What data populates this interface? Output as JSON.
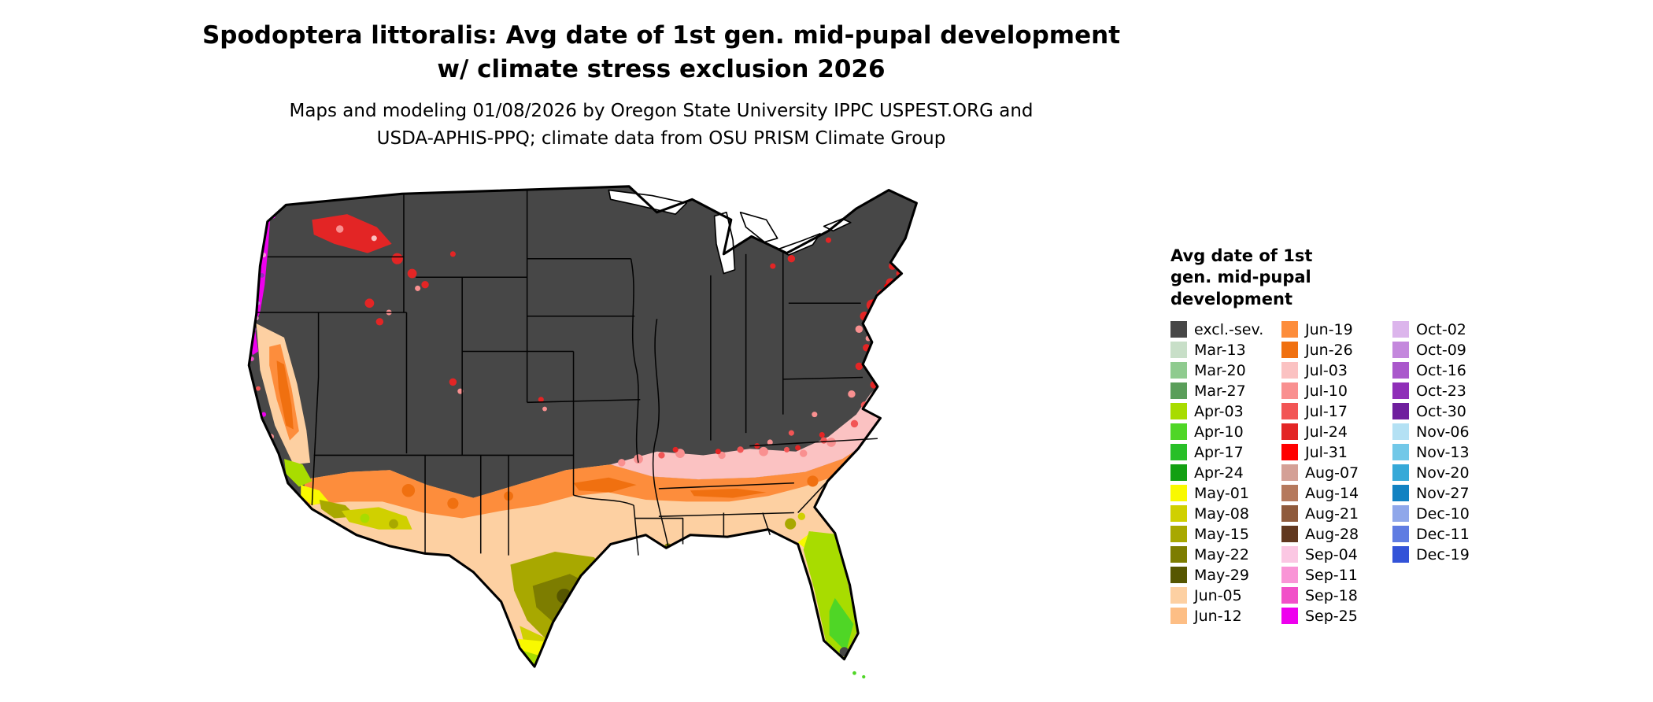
{
  "title": {
    "line1": "Spodoptera littoralis: Avg date of 1st gen. mid-pupal development",
    "line2": "w/ climate stress exclusion 2026"
  },
  "subtitle": {
    "line1": "Maps and modeling 01/08/2026 by Oregon State University IPPC USPEST.ORG and",
    "line2": "USDA-APHIS-PPQ; climate data from OSU PRISM Climate Group"
  },
  "legend": {
    "title": "Avg date of 1st gen. mid-pupal development",
    "columns": [
      [
        "excl.-sev.",
        "Mar-13",
        "Mar-20",
        "Mar-27",
        "Apr-03",
        "Apr-10",
        "Apr-17",
        "Apr-24",
        "May-01",
        "May-08",
        "May-15",
        "May-22",
        "May-29",
        "Jun-05",
        "Jun-12"
      ],
      [
        "Jun-19",
        "Jun-26",
        "Jul-03",
        "Jul-10",
        "Jul-17",
        "Jul-24",
        "Jul-31",
        "Aug-07",
        "Aug-14",
        "Aug-21",
        "Aug-28",
        "Sep-04",
        "Sep-11",
        "Sep-18",
        "Sep-25"
      ],
      [
        "Oct-02",
        "Oct-09",
        "Oct-16",
        "Oct-23",
        "Oct-30",
        "Nov-06",
        "Nov-13",
        "Nov-20",
        "Nov-27",
        "Dec-10",
        "Dec-11",
        "Dec-19"
      ]
    ]
  },
  "colors": {
    "excl.-sev.": "#474747",
    "Mar-13": "#c8dfc8",
    "Mar-20": "#8fcb8f",
    "Mar-27": "#5a9e5a",
    "Apr-03": "#a8dc00",
    "Apr-10": "#4fd626",
    "Apr-17": "#28bf28",
    "Apr-24": "#12a012",
    "May-01": "#f9f900",
    "May-08": "#d0d000",
    "May-15": "#a8a800",
    "May-22": "#7d7d00",
    "May-29": "#565600",
    "Jun-05": "#fdd0a2",
    "Jun-12": "#fdbe85",
    "Jun-19": "#fd8d3c",
    "Jun-26": "#f07010",
    "Jul-03": "#fbc2c2",
    "Jul-10": "#f99090",
    "Jul-17": "#f25555",
    "Jul-24": "#e32525",
    "Jul-31": "#ff0000",
    "Aug-07": "#d4a096",
    "Aug-14": "#b5795d",
    "Aug-21": "#8f5a3c",
    "Aug-28": "#61381f",
    "Sep-04": "#fbc7e3",
    "Sep-11": "#f995d6",
    "Sep-18": "#f150c8",
    "Sep-25": "#ee00ee",
    "Oct-02": "#dcb5ec",
    "Oct-09": "#c488dd",
    "Oct-16": "#aa58cc",
    "Oct-23": "#8f2fb8",
    "Oct-30": "#6f1f9e",
    "Nov-06": "#b4e1f4",
    "Nov-13": "#72c8e8",
    "Nov-20": "#36a9d8",
    "Nov-27": "#1282c2",
    "Dec-10": "#8fa7ea",
    "Dec-11": "#5f7ce2",
    "Dec-19": "#3353d8"
  }
}
